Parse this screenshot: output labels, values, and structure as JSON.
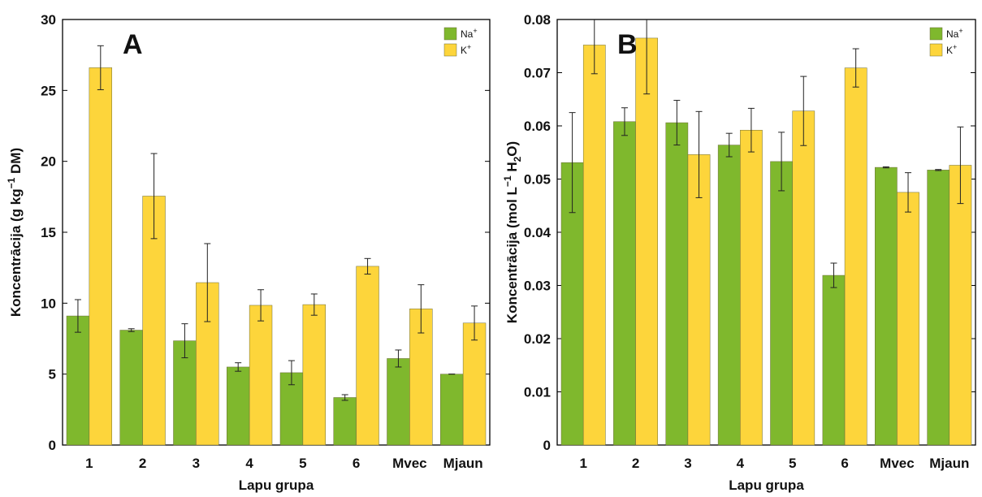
{
  "chart_data": [
    {
      "type": "bar",
      "panel_label": "A",
      "xlabel": "Lapu grupa",
      "ylabel": {
        "main": "Koncentrācija  (g kg",
        "sup": "−1",
        "rest": " DM)"
      },
      "ylim": [
        0,
        30
      ],
      "yticks": [
        "0",
        "5",
        "10",
        "15",
        "20",
        "25",
        "30"
      ],
      "categories": [
        "1",
        "2",
        "3",
        "4",
        "5",
        "6",
        "Mvec",
        "Mjaun"
      ],
      "legend_position": "top-right",
      "series": [
        {
          "name": "Na",
          "sup": "+",
          "color": "#7fb82d",
          "values": [
            9.1,
            8.1,
            7.35,
            5.5,
            5.1,
            3.35,
            6.1,
            5.0
          ],
          "errors": [
            1.15,
            0.1,
            1.2,
            0.3,
            0.85,
            0.2,
            0.6,
            0.0
          ]
        },
        {
          "name": "K",
          "sup": "+",
          "color": "#fdd53b",
          "values": [
            26.6,
            17.55,
            11.45,
            9.85,
            9.9,
            12.6,
            9.6,
            8.6
          ],
          "errors": [
            1.55,
            3.0,
            2.75,
            1.1,
            0.75,
            0.55,
            1.7,
            1.2
          ]
        }
      ]
    },
    {
      "type": "bar",
      "panel_label": "B",
      "xlabel": "Lapu grupa",
      "ylabel": {
        "main": "Koncentrācija  (mol L",
        "sup": "−1",
        "mid": " H",
        "sub": "2",
        "rest": "O)"
      },
      "ylim": [
        0,
        0.08
      ],
      "yticks": [
        "0",
        "0.01",
        "0.02",
        "0.03",
        "0.04",
        "0.05",
        "0.06",
        "0.07",
        "0.08"
      ],
      "categories": [
        "1",
        "2",
        "3",
        "4",
        "5",
        "6",
        "Mvec",
        "Mjaun"
      ],
      "legend_position": "top-right",
      "series": [
        {
          "name": "Na",
          "sup": "+",
          "color": "#7fb82d",
          "values": [
            0.0531,
            0.0608,
            0.0606,
            0.0564,
            0.0533,
            0.0319,
            0.0522,
            0.0517
          ],
          "errors": [
            0.0094,
            0.0026,
            0.0042,
            0.0022,
            0.0055,
            0.0023,
            0.0001,
            0.0001
          ]
        },
        {
          "name": "K",
          "sup": "+",
          "color": "#fdd53b",
          "values": [
            0.0752,
            0.0765,
            0.0546,
            0.0592,
            0.0628,
            0.0709,
            0.0475,
            0.0526
          ],
          "errors": [
            0.0054,
            0.0105,
            0.0081,
            0.0041,
            0.0065,
            0.0036,
            0.0037,
            0.0072
          ]
        }
      ]
    }
  ]
}
